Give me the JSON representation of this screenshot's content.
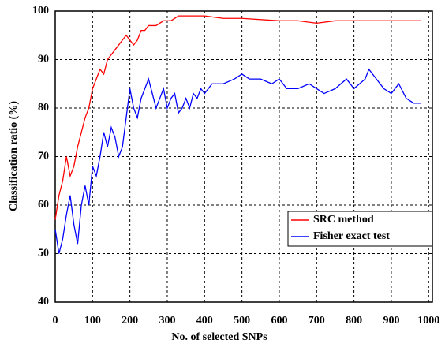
{
  "chart_data": {
    "type": "line",
    "x_label": "No. of selected SNPs",
    "y_label": "Classification ratio (%)",
    "xlim": [
      0,
      1010
    ],
    "ylim": [
      40,
      100
    ],
    "xticks": [
      0,
      100,
      200,
      300,
      400,
      500,
      600,
      700,
      800,
      900,
      1000
    ],
    "yticks": [
      40,
      50,
      60,
      70,
      80,
      90,
      100
    ],
    "grid": true,
    "legend": "lower-right",
    "series": [
      {
        "name": "SRC method",
        "color": "#ff0000",
        "x": [
          0,
          10,
          20,
          30,
          40,
          50,
          60,
          70,
          80,
          90,
          100,
          110,
          120,
          130,
          140,
          150,
          160,
          170,
          180,
          190,
          200,
          210,
          220,
          230,
          240,
          250,
          270,
          290,
          310,
          330,
          350,
          370,
          400,
          450,
          500,
          600,
          650,
          700,
          750,
          800,
          900,
          970,
          980
        ],
        "values": [
          57,
          62,
          65,
          70,
          66,
          68,
          72,
          75,
          78,
          80,
          84,
          86,
          88,
          87,
          90,
          91,
          92,
          93,
          94,
          95,
          94,
          93,
          94,
          96,
          96,
          97,
          97,
          98,
          98,
          99,
          99,
          99,
          99,
          98.5,
          98.5,
          98,
          98,
          97.5,
          98,
          98,
          98,
          98,
          98
        ]
      },
      {
        "name": "Fisher exact test",
        "color": "#0000ff",
        "x": [
          0,
          10,
          20,
          30,
          40,
          50,
          60,
          70,
          80,
          90,
          100,
          110,
          120,
          130,
          140,
          150,
          160,
          170,
          180,
          190,
          200,
          210,
          220,
          230,
          240,
          250,
          260,
          270,
          280,
          290,
          300,
          310,
          320,
          330,
          340,
          350,
          360,
          370,
          380,
          390,
          400,
          420,
          450,
          480,
          500,
          520,
          550,
          580,
          600,
          620,
          650,
          680,
          700,
          720,
          750,
          780,
          800,
          830,
          840,
          860,
          880,
          900,
          920,
          940,
          960,
          980
        ],
        "values": [
          55,
          50,
          53,
          58,
          62,
          56,
          52,
          60,
          64,
          60,
          68,
          66,
          70,
          75,
          72,
          76,
          74,
          70,
          72,
          78,
          84,
          80,
          78,
          82,
          84,
          86,
          83,
          80,
          82,
          84,
          80,
          82,
          83,
          79,
          80,
          82,
          80,
          83,
          82,
          84,
          83,
          85,
          85,
          86,
          87,
          86,
          86,
          85,
          86,
          84,
          84,
          85,
          84,
          83,
          84,
          86,
          84,
          86,
          88,
          86,
          84,
          83,
          85,
          82,
          81,
          81
        ]
      }
    ]
  }
}
